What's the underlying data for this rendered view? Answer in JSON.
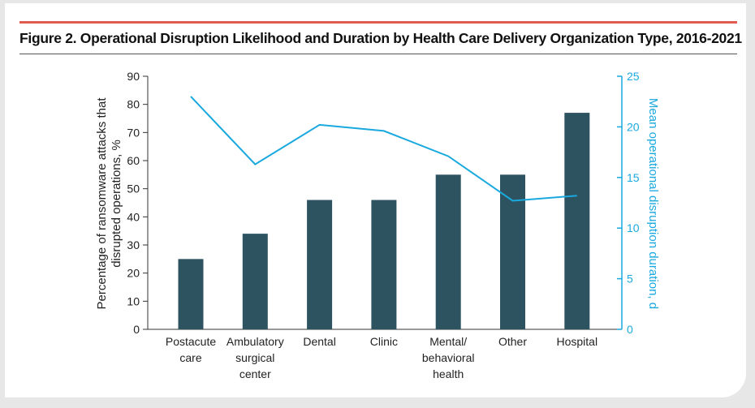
{
  "figure": {
    "title": "Figure 2. Operational Disruption Likelihood and Duration by Health Care Delivery Organization Type, 2016-2021"
  },
  "colors": {
    "bar": "#2d5361",
    "line": "#1aa9df",
    "accent_rule": "#e15b50",
    "left_axis": "#333333",
    "right_axis": "#1aa9df"
  },
  "chart_data": {
    "type": "bar",
    "categories": [
      [
        "Postacute",
        "care"
      ],
      [
        "Ambulatory",
        "surgical",
        "center"
      ],
      [
        "Dental"
      ],
      [
        "Clinic"
      ],
      [
        "Mental/",
        "behavioral",
        "health"
      ],
      [
        "Other"
      ],
      [
        "Hospital"
      ]
    ],
    "series": [
      {
        "type": "bar",
        "axis": "left",
        "values": [
          25,
          34,
          46,
          46,
          55,
          55,
          77
        ]
      },
      {
        "type": "line",
        "axis": "right",
        "values": [
          23.0,
          16.3,
          20.2,
          19.6,
          17.1,
          12.7,
          13.2
        ]
      }
    ],
    "ylabel_left": [
      "Percentage of ransomware attacks that",
      "disrupted operations, %"
    ],
    "ylabel_right": "Mean operational disruption duration, d",
    "ylim_left": [
      0,
      90
    ],
    "yticks_left": [
      0,
      10,
      20,
      30,
      40,
      50,
      60,
      70,
      80,
      90
    ],
    "ylim_right": [
      0,
      25
    ],
    "yticks_right": [
      0,
      5,
      10,
      15,
      20,
      25
    ],
    "grid": false,
    "legend": "none"
  }
}
